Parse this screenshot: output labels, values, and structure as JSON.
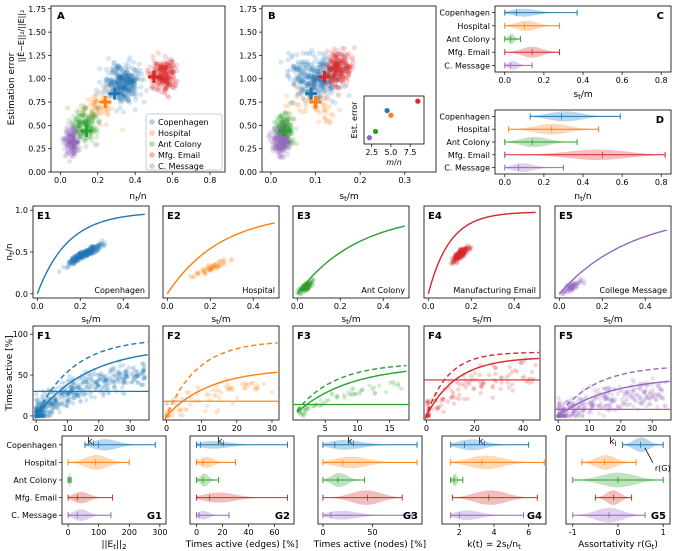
{
  "colors": {
    "Copenhagen": "#1f77b4",
    "Hospital": "#ff7f0e",
    "Ant Colony": "#2ca02c",
    "Mfg. Email": "#d62728",
    "C. Message": "#9467bd"
  },
  "datasets": [
    "Copenhagen",
    "Hospital",
    "Ant Colony",
    "Mfg. Email",
    "C. Message"
  ],
  "datasets_long": [
    "Copenhagen",
    "Hospital",
    "Ant Colony",
    "Manufacturing Email",
    "College Message"
  ],
  "chart_data": [
    {
      "panel": "A",
      "type": "scatter",
      "xlabel": "n_t/n",
      "ylabel": "Estimation error ||E_t - E_t||2 / ||E_t||2",
      "xticks": [
        "0.0",
        "0.2",
        "0.4",
        "0.6",
        "0.8"
      ],
      "yticks": [
        "0.00",
        "0.25",
        "0.50",
        "0.75",
        "1.00",
        "1.25",
        "1.50",
        "1.75"
      ],
      "xlim": [
        -0.05,
        0.88
      ],
      "ylim": [
        0.0,
        1.78
      ],
      "centroids": [
        {
          "name": "Copenhagen",
          "x": 0.29,
          "y": 0.84
        },
        {
          "name": "Hospital",
          "x": 0.24,
          "y": 0.75
        },
        {
          "name": "Ant Colony",
          "x": 0.14,
          "y": 0.44
        },
        {
          "name": "Mfg. Email",
          "x": 0.5,
          "y": 1.02
        },
        {
          "name": "C. Message",
          "x": 0.07,
          "y": 0.32
        }
      ],
      "legend": [
        "Copenhagen",
        "Hospital",
        "Ant Colony",
        "Mfg. Email",
        "C. Message"
      ]
    },
    {
      "panel": "B",
      "type": "scatter",
      "xlabel": "s_t/m",
      "xticks": [
        "0.0",
        "0.1",
        "0.2",
        "0.3"
      ],
      "yticks": [
        "0.00",
        "0.25",
        "0.50",
        "0.75",
        "1.00",
        "1.25",
        "1.50",
        "1.75"
      ],
      "xlim": [
        -0.02,
        0.37
      ],
      "ylim": [
        0.0,
        1.78
      ],
      "centroids": [
        {
          "name": "Copenhagen",
          "x": 0.09,
          "y": 0.84
        },
        {
          "name": "Hospital",
          "x": 0.1,
          "y": 0.75
        },
        {
          "name": "Ant Colony",
          "x": 0.03,
          "y": 0.44
        },
        {
          "name": "Mfg. Email",
          "x": 0.12,
          "y": 1.02
        },
        {
          "name": "C. Message",
          "x": 0.03,
          "y": 0.32
        }
      ],
      "inset": {
        "xlabel": "m/n",
        "ylabel": "Est. error",
        "xticks": [
          "2.5",
          "5.0",
          "7.5"
        ],
        "points": [
          {
            "name": "Copenhagen",
            "x": 4.5,
            "y": 0.84
          },
          {
            "name": "Hospital",
            "x": 5.0,
            "y": 0.75
          },
          {
            "name": "Ant Colony",
            "x": 3.0,
            "y": 0.44
          },
          {
            "name": "Mfg. Email",
            "x": 8.5,
            "y": 1.02
          },
          {
            "name": "C. Message",
            "x": 2.2,
            "y": 0.32
          }
        ]
      }
    },
    {
      "panel": "C",
      "type": "violin",
      "xlabel": "s_t/m",
      "xticks": [
        "0.0",
        "0.2",
        "0.4",
        "0.6",
        "0.8"
      ],
      "xlim": [
        -0.05,
        0.85
      ],
      "rows": [
        {
          "name": "Copenhagen",
          "min": 0.0,
          "max": 0.37,
          "median": 0.06
        },
        {
          "name": "Hospital",
          "min": 0.0,
          "max": 0.28,
          "median": 0.1
        },
        {
          "name": "Ant Colony",
          "min": 0.0,
          "max": 0.08,
          "median": 0.03
        },
        {
          "name": "Mfg. Email",
          "min": 0.0,
          "max": 0.28,
          "median": 0.14
        },
        {
          "name": "C. Message",
          "min": 0.0,
          "max": 0.14,
          "median": 0.03
        }
      ]
    },
    {
      "panel": "D",
      "type": "violin",
      "xlabel": "n_t/n",
      "xticks": [
        "0.0",
        "0.2",
        "0.4",
        "0.6",
        "0.8"
      ],
      "xlim": [
        -0.05,
        0.85
      ],
      "rows": [
        {
          "name": "Copenhagen",
          "min": 0.13,
          "max": 0.59,
          "median": 0.29
        },
        {
          "name": "Hospital",
          "min": 0.02,
          "max": 0.48,
          "median": 0.24
        },
        {
          "name": "Ant Colony",
          "min": 0.0,
          "max": 0.37,
          "median": 0.14
        },
        {
          "name": "Mfg. Email",
          "min": 0.0,
          "max": 0.82,
          "median": 0.5
        },
        {
          "name": "C. Message",
          "min": 0.0,
          "max": 0.3,
          "median": 0.07
        }
      ]
    },
    {
      "panel": "E",
      "type": "scatter",
      "panels": [
        "E1",
        "E2",
        "E3",
        "E4",
        "E5"
      ],
      "xlabel": "s_t/m",
      "ylabel": "n_t/n",
      "xticks": [
        "0.0",
        "0.2",
        "0.4"
      ],
      "yticks": [
        "0.0",
        "0.5",
        "1.0"
      ],
      "xlim": [
        -0.02,
        0.52
      ],
      "ylim": [
        -0.05,
        1.05
      ]
    },
    {
      "panel": "F",
      "type": "scatter",
      "panels": [
        "F1",
        "F2",
        "F3",
        "F4",
        "F5"
      ],
      "xlabel": "k_i",
      "ylabel": "Times active [%]",
      "yticks": [
        "0",
        "50",
        "100"
      ],
      "ylim": [
        -5,
        110
      ],
      "xticks": [
        [
          "0",
          "10",
          "20",
          "30"
        ],
        [
          "0",
          "10",
          "20",
          "30"
        ],
        [
          "5",
          "10",
          "15"
        ],
        [
          "0",
          "20",
          "40"
        ],
        [
          "0",
          "10",
          "20",
          "30"
        ]
      ],
      "xlim": [
        [
          -1,
          36
        ],
        [
          -1,
          32
        ],
        [
          0,
          18
        ],
        [
          -1,
          47
        ],
        [
          -1,
          36
        ]
      ],
      "hline": [
        30,
        18,
        14,
        44,
        8
      ]
    },
    {
      "panel": "G1",
      "type": "violin",
      "xlabel": "||E_t||2",
      "xticks": [
        "0",
        "100",
        "200",
        "300"
      ],
      "xlim": [
        -20,
        320
      ],
      "rows": [
        {
          "name": "Copenhagen",
          "min": 55,
          "max": 285,
          "median": 100
        },
        {
          "name": "Hospital",
          "min": 0,
          "max": 200,
          "median": 90
        },
        {
          "name": "Ant Colony",
          "min": 0,
          "max": 10,
          "median": 4
        },
        {
          "name": "Mfg. Email",
          "min": 0,
          "max": 145,
          "median": 30
        },
        {
          "name": "C. Message",
          "min": 0,
          "max": 140,
          "median": 30
        }
      ]
    },
    {
      "panel": "G2",
      "type": "violin",
      "xlabel": "Times active (edges) [%]",
      "xticks": [
        "0",
        "20",
        "40",
        "60"
      ],
      "xlim": [
        -5,
        75
      ],
      "rows": [
        {
          "name": "Copenhagen",
          "min": 0,
          "max": 70,
          "median": 3
        },
        {
          "name": "Hospital",
          "min": 0,
          "max": 30,
          "median": 5
        },
        {
          "name": "Ant Colony",
          "min": 0,
          "max": 17,
          "median": 5
        },
        {
          "name": "Mfg. Email",
          "min": 0,
          "max": 70,
          "median": 10
        },
        {
          "name": "C. Message",
          "min": 0,
          "max": 25,
          "median": 2
        }
      ]
    },
    {
      "panel": "G3",
      "type": "violin",
      "xlabel": "Times active (nodes) [%]",
      "xticks": [
        "0",
        "50"
      ],
      "xlim": [
        -5,
        100
      ],
      "rows": [
        {
          "name": "Copenhagen",
          "min": 0,
          "max": 95,
          "median": 12
        },
        {
          "name": "Hospital",
          "min": 0,
          "max": 95,
          "median": 20
        },
        {
          "name": "Ant Colony",
          "min": 0,
          "max": 42,
          "median": 15
        },
        {
          "name": "Mfg. Email",
          "min": 0,
          "max": 80,
          "median": 45
        },
        {
          "name": "C. Message",
          "min": 0,
          "max": 90,
          "median": 8
        }
      ]
    },
    {
      "panel": "G4",
      "type": "violin",
      "xlabel": "k(t) = 2s_t/n_t",
      "xticks": [
        "2",
        "4",
        "6"
      ],
      "xlim": [
        1,
        7
      ],
      "rows": [
        {
          "name": "Copenhagen",
          "min": 1.5,
          "max": 6.0,
          "median": 2.3
        },
        {
          "name": "Hospital",
          "min": 1.5,
          "max": 6.9,
          "median": 3.3
        },
        {
          "name": "Ant Colony",
          "min": 1.5,
          "max": 2.2,
          "median": 1.7
        },
        {
          "name": "Mfg. Email",
          "min": 1.6,
          "max": 6.5,
          "median": 3.7
        },
        {
          "name": "C. Message",
          "min": 1.5,
          "max": 5.7,
          "median": 2.0
        }
      ]
    },
    {
      "panel": "G5",
      "type": "violin",
      "xlabel": "Assortativity r(G_t)",
      "xticks": [
        "-1",
        "0",
        "1"
      ],
      "xlim": [
        -1.15,
        1.15
      ],
      "annotation": "r(G)",
      "rows": [
        {
          "name": "Copenhagen",
          "min": 0.1,
          "max": 1.0,
          "median": 0.5
        },
        {
          "name": "Hospital",
          "min": -0.8,
          "max": 0.4,
          "median": -0.3
        },
        {
          "name": "Ant Colony",
          "min": -1.0,
          "max": 1.0,
          "median": 0.0
        },
        {
          "name": "Mfg. Email",
          "min": -0.5,
          "max": 0.3,
          "median": -0.1
        },
        {
          "name": "C. Message",
          "min": -1.0,
          "max": 0.6,
          "median": -0.2
        }
      ]
    }
  ]
}
